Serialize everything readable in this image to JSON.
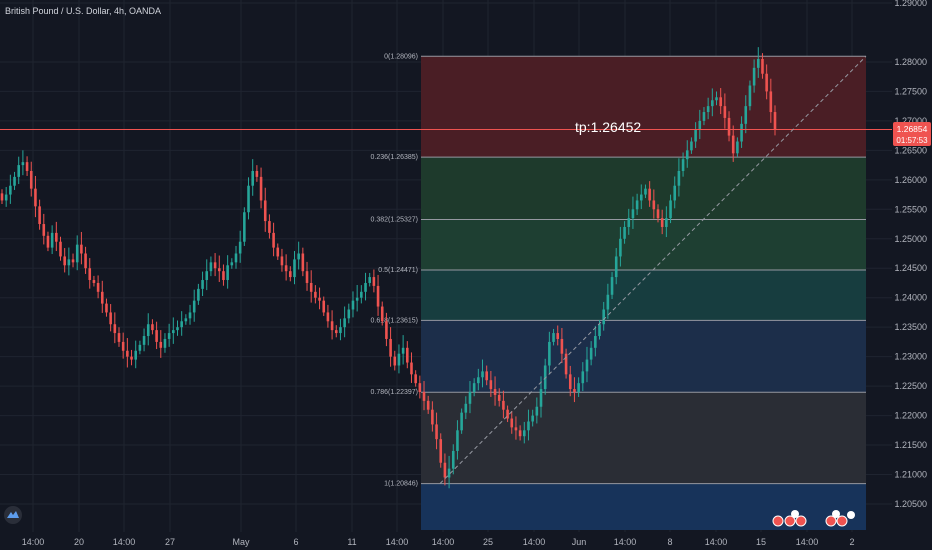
{
  "header": {
    "symbol_title": "British Pound / U.S. Dollar, 4h, OANDA"
  },
  "colors": {
    "background": "#131722",
    "grid": "#1f2430",
    "bull": "#26a69a",
    "bear": "#ef5350",
    "price_line": "#ef5350",
    "axis_text": "#b2b5be"
  },
  "chart_data": {
    "type": "candlestick",
    "title": "British Pound / U.S. Dollar, 4h, OANDA",
    "ylim": [
      1.2,
      1.29
    ],
    "y_ticks": [
      "1.29000",
      "1.28000",
      "1.27500",
      "1.27000",
      "1.26500",
      "1.26000",
      "1.25500",
      "1.25000",
      "1.24500",
      "1.24000",
      "1.23500",
      "1.23000",
      "1.22500",
      "1.22000",
      "1.21500",
      "1.21000",
      "1.20500"
    ],
    "x_ticks": [
      "14:00",
      "20",
      "14:00",
      "27",
      "May",
      "6",
      "11",
      "14:00",
      "14:00",
      "25",
      "14:00",
      "Jun",
      "14:00",
      "8",
      "14:00",
      "15",
      "14:00",
      "2"
    ],
    "current_price": {
      "label": "1.26854",
      "countdown": "01:57:53",
      "value": 1.26854
    },
    "annotation": {
      "text": "tp:1.26452"
    },
    "fibonacci": {
      "levels": [
        {
          "label": "0(1.28096)",
          "value": 1.28096
        },
        {
          "label": "0.236(1.26385)",
          "value": 1.26385
        },
        {
          "label": "0.382(1.25327)",
          "value": 1.25327
        },
        {
          "label": "0.5(1.24471)",
          "value": 1.24471
        },
        {
          "label": "0.618(1.23615)",
          "value": 1.23615
        },
        {
          "label": "0.786(1.22397)",
          "value": 1.22397
        },
        {
          "label": "1(1.20846)",
          "value": 1.20846
        }
      ],
      "zone_colors": [
        "#4a1e25",
        "#1e3a2c",
        "#1e3f32",
        "#173d3f",
        "#1c2e4a",
        "#2a2d35",
        "#17335a"
      ]
    },
    "closes": [
      1.2565,
      1.2575,
      1.259,
      1.2605,
      1.2625,
      1.263,
      1.2615,
      1.2585,
      1.2555,
      1.2525,
      1.2505,
      1.2485,
      1.251,
      1.2495,
      1.247,
      1.2455,
      1.2465,
      1.246,
      1.249,
      1.2475,
      1.245,
      1.243,
      1.2425,
      1.241,
      1.239,
      1.2375,
      1.2355,
      1.234,
      1.2325,
      1.231,
      1.23,
      1.2295,
      1.231,
      1.232,
      1.2335,
      1.2355,
      1.2345,
      1.2325,
      1.2315,
      1.233,
      1.234,
      1.2345,
      1.235,
      1.236,
      1.2365,
      1.2375,
      1.2395,
      1.2415,
      1.243,
      1.2445,
      1.246,
      1.245,
      1.2445,
      1.243,
      1.2455,
      1.246,
      1.2475,
      1.2495,
      1.2545,
      1.259,
      1.2615,
      1.2605,
      1.2565,
      1.253,
      1.251,
      1.2485,
      1.247,
      1.2455,
      1.2445,
      1.2435,
      1.2465,
      1.2475,
      1.2445,
      1.2425,
      1.241,
      1.24,
      1.2395,
      1.2375,
      1.236,
      1.2345,
      1.234,
      1.235,
      1.2365,
      1.238,
      1.2395,
      1.24,
      1.241,
      1.2425,
      1.2435,
      1.242,
      1.2385,
      1.236,
      1.233,
      1.23,
      1.2285,
      1.2305,
      1.2315,
      1.229,
      1.227,
      1.2255,
      1.224,
      1.2225,
      1.221,
      1.2185,
      1.216,
      1.212,
      1.2095,
      1.211,
      1.214,
      1.2175,
      1.2205,
      1.222,
      1.224,
      1.2255,
      1.2265,
      1.2275,
      1.226,
      1.2245,
      1.2235,
      1.2225,
      1.221,
      1.2195,
      1.218,
      1.2175,
      1.2165,
      1.2175,
      1.219,
      1.22,
      1.2215,
      1.2245,
      1.2285,
      1.2325,
      1.234,
      1.233,
      1.2305,
      1.227,
      1.2245,
      1.224,
      1.2255,
      1.2275,
      1.2295,
      1.2315,
      1.2335,
      1.2355,
      1.238,
      1.2405,
      1.2435,
      1.247,
      1.25,
      1.252,
      1.2535,
      1.255,
      1.2565,
      1.2575,
      1.2585,
      1.2565,
      1.255,
      1.2535,
      1.252,
      1.2535,
      1.2565,
      1.259,
      1.2615,
      1.2635,
      1.265,
      1.2665,
      1.2685,
      1.27,
      1.2715,
      1.2725,
      1.2735,
      1.274,
      1.2725,
      1.2705,
      1.2675,
      1.2645,
      1.2665,
      1.2695,
      1.2725,
      1.276,
      1.279,
      1.2805,
      1.278,
      1.275,
      1.2715,
      1.2685
    ]
  }
}
